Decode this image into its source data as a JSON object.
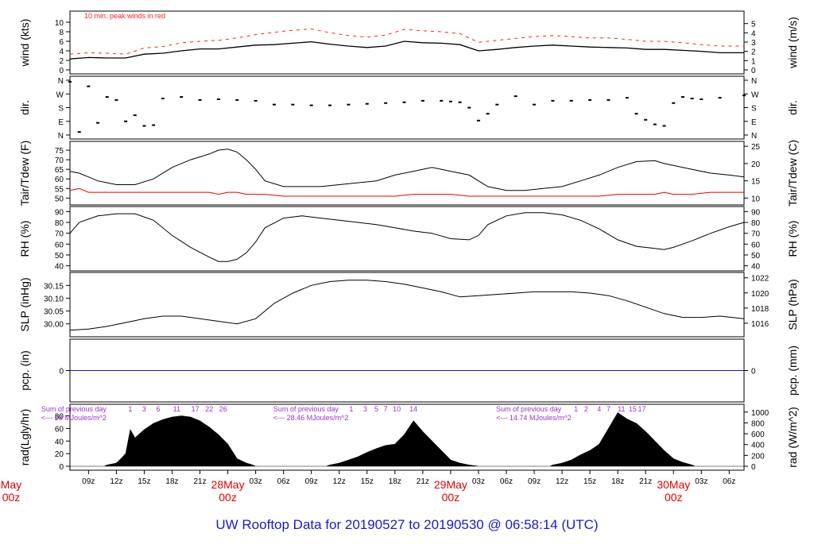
{
  "title": "UW Rooftop Data for 20190527  to  20190530 @ 06:58:14  (UTC)",
  "colors": {
    "title": "#1a1acc",
    "date": "#e00000",
    "trace": "#000000",
    "peak": "#ff2020",
    "dew": "#ee0000",
    "precip": "#1a1acc",
    "solar_note": "#9933cc"
  },
  "time_axis": {
    "hour_ticks": [
      "09z",
      "12z",
      "15z",
      "18z",
      "21z",
      "28May",
      "03z",
      "06z",
      "09z",
      "12z",
      "15z",
      "18z",
      "21z",
      "29May",
      "03z",
      "06z",
      "09z",
      "12z",
      "15z",
      "18z",
      "21z",
      "30May",
      "03z",
      "06z"
    ],
    "date_labels": [
      {
        "date": "May",
        "sub": "00z",
        "t": 0
      },
      {
        "date": "28May",
        "sub": "00z",
        "t": 24
      },
      {
        "date": "29May",
        "sub": "00z",
        "t": 48
      },
      {
        "date": "30May",
        "sub": "00z",
        "t": 72
      }
    ],
    "range_hours": [
      7,
      79.6
    ]
  },
  "chart_data": [
    {
      "type": "line",
      "panel": "wind",
      "ylabel": "wind (kts)",
      "ylabel_right": "wind (m/s)",
      "ylim": [
        0,
        11.5
      ],
      "yticks": [
        "0",
        "2",
        "4",
        "6",
        "8",
        "10"
      ],
      "yticks_right": [
        "0",
        "1",
        "2",
        "3",
        "4",
        "5"
      ],
      "annotation": "10 min. peak winds in red",
      "x": [
        7,
        9,
        11,
        13,
        15,
        17,
        19,
        21,
        23,
        25,
        27,
        29,
        31,
        33,
        35,
        37,
        39,
        41,
        43,
        45,
        47,
        49,
        51,
        53,
        55,
        57,
        59,
        61,
        63,
        65,
        67,
        69,
        71,
        73,
        75,
        77,
        79.6
      ],
      "series": [
        {
          "name": "wind",
          "values": [
            2.3,
            2.6,
            2.5,
            2.5,
            3.3,
            3.5,
            4.0,
            4.4,
            4.4,
            4.8,
            5.2,
            5.3,
            5.6,
            5.9,
            5.4,
            5.0,
            4.7,
            5.0,
            6.0,
            5.7,
            5.6,
            5.3,
            4.0,
            4.3,
            4.7,
            5.0,
            5.2,
            5.0,
            4.8,
            4.7,
            4.6,
            4.3,
            4.3,
            4.1,
            3.9,
            3.6,
            3.6
          ]
        },
        {
          "name": "peak",
          "values": [
            3.3,
            3.6,
            3.5,
            3.3,
            4.6,
            4.9,
            5.7,
            6.0,
            6.2,
            6.7,
            7.4,
            7.9,
            8.3,
            8.6,
            7.8,
            7.2,
            6.9,
            7.3,
            8.5,
            8.2,
            8.0,
            7.6,
            5.8,
            6.2,
            6.6,
            7.0,
            7.2,
            7.0,
            6.7,
            6.7,
            6.4,
            6.0,
            6.0,
            5.7,
            5.3,
            5.0,
            5.0
          ]
        }
      ]
    },
    {
      "type": "scatter",
      "panel": "dir",
      "ylabel": "dir.",
      "ylabel_right": "dir.",
      "ylim": [
        0,
        360
      ],
      "yticks": [
        "N",
        "E",
        "S",
        "W",
        "N"
      ],
      "x": [
        7,
        8,
        9,
        10,
        11,
        12,
        13,
        14,
        15,
        16,
        17,
        19,
        21,
        23,
        25,
        27,
        29,
        31,
        33,
        35,
        37,
        39,
        41,
        43,
        45,
        47,
        48,
        49,
        50,
        51,
        52,
        53,
        55,
        57,
        59,
        61,
        63,
        65,
        67,
        68,
        69,
        70,
        71,
        72,
        73,
        74,
        75,
        77,
        79.6
      ],
      "series": [
        {
          "name": "direction",
          "values": [
            350,
            20,
            320,
            80,
            250,
            230,
            90,
            130,
            60,
            65,
            240,
            250,
            230,
            235,
            230,
            225,
            200,
            200,
            195,
            195,
            200,
            205,
            210,
            215,
            225,
            225,
            220,
            215,
            180,
            95,
            140,
            200,
            255,
            200,
            225,
            225,
            230,
            230,
            245,
            140,
            100,
            70,
            60,
            210,
            250,
            240,
            235,
            245,
            260
          ]
        }
      ]
    },
    {
      "type": "line",
      "panel": "temperature",
      "ylabel": "Tair/Tdew (F)",
      "ylabel_right": "Tair/Tdew (C)",
      "ylim": [
        48.5,
        77.5
      ],
      "yticks": [
        "50",
        "55",
        "60",
        "65",
        "70",
        "75"
      ],
      "yticks_right": [
        "10",
        "15",
        "20",
        "25"
      ],
      "x": [
        7,
        8,
        9,
        10,
        12,
        14,
        16,
        18,
        20,
        22,
        23,
        24,
        25,
        26,
        27,
        28,
        30,
        32,
        34,
        36,
        38,
        40,
        42,
        44,
        46,
        48,
        50,
        51,
        52,
        54,
        56,
        58,
        60,
        62,
        64,
        66,
        68,
        70,
        71,
        72,
        74,
        76,
        78,
        79.6
      ],
      "series": [
        {
          "name": "Tair",
          "values": [
            64,
            63,
            61,
            59,
            57,
            57,
            60,
            66,
            70,
            73,
            75,
            75.5,
            74,
            70,
            65,
            59,
            56,
            56,
            56,
            57,
            58,
            59,
            62,
            64,
            66,
            64,
            62,
            59,
            56,
            54,
            54,
            55,
            56,
            59,
            62,
            66,
            69,
            69.5,
            68,
            67,
            65,
            63,
            62,
            61
          ]
        },
        {
          "name": "Tdew",
          "values": [
            54,
            55,
            53,
            53,
            53,
            53,
            53,
            53,
            53,
            53,
            52,
            53,
            53,
            52,
            52,
            52,
            51,
            51,
            51,
            51,
            51,
            51,
            51,
            52,
            52,
            52,
            51,
            51,
            51,
            51,
            51,
            51,
            51,
            51,
            51,
            52,
            52,
            52,
            53,
            52,
            52,
            53,
            53,
            53
          ]
        }
      ]
    },
    {
      "type": "line",
      "panel": "rh",
      "ylabel": "RH (%)",
      "ylabel_right": "RH (%)",
      "ylim": [
        39,
        91
      ],
      "yticks": [
        "40",
        "50",
        "60",
        "70",
        "80",
        "90"
      ],
      "yticks_right": [
        "40",
        "50",
        "60",
        "70",
        "80",
        "90"
      ],
      "x": [
        7,
        8,
        9,
        10,
        12,
        14,
        16,
        18,
        20,
        22,
        23,
        24,
        25,
        26,
        27,
        28,
        30,
        32,
        34,
        36,
        38,
        40,
        42,
        44,
        46,
        48,
        50,
        51,
        52,
        54,
        56,
        58,
        60,
        62,
        64,
        66,
        68,
        70,
        71,
        72,
        74,
        76,
        78,
        79.6
      ],
      "series": [
        {
          "name": "RH",
          "values": [
            70,
            80,
            83,
            86,
            88,
            88,
            82,
            68,
            57,
            48,
            44,
            44,
            46,
            52,
            62,
            75,
            84,
            86,
            84,
            82,
            80,
            78,
            75,
            72,
            70,
            65,
            64,
            68,
            78,
            86,
            89,
            89,
            87,
            82,
            74,
            64,
            58,
            56,
            55,
            57,
            63,
            70,
            76,
            80
          ]
        }
      ]
    },
    {
      "type": "line",
      "panel": "slp",
      "ylabel": "SLP (inHg)",
      "ylabel_right": "SLP (hPa)",
      "ylim": [
        29.965,
        30.185
      ],
      "yticks": [
        "30.00",
        "30.05",
        "30.10",
        "30.15"
      ],
      "yticks_right": [
        "1016",
        "1018",
        "1020",
        "1022"
      ],
      "x": [
        7,
        9,
        11,
        13,
        15,
        17,
        19,
        21,
        23,
        25,
        27,
        29,
        31,
        33,
        35,
        37,
        39,
        41,
        43,
        45,
        47,
        49,
        51,
        53,
        55,
        57,
        59,
        61,
        63,
        65,
        67,
        69,
        71,
        73,
        75,
        77,
        79.6
      ],
      "series": [
        {
          "name": "SLP",
          "values": [
            29.975,
            29.98,
            29.99,
            30.005,
            30.02,
            30.03,
            30.03,
            30.02,
            30.01,
            30.0,
            30.02,
            30.08,
            30.12,
            30.15,
            30.165,
            30.17,
            30.17,
            30.165,
            30.155,
            30.14,
            30.125,
            30.105,
            30.11,
            30.115,
            30.12,
            30.125,
            30.125,
            30.125,
            30.12,
            30.11,
            30.09,
            30.065,
            30.04,
            30.025,
            30.025,
            30.03,
            30.02
          ]
        }
      ]
    },
    {
      "type": "line",
      "panel": "precip",
      "ylabel": "pcp. (in)",
      "ylabel_right": "pcp. (mm)",
      "ylim": [
        -1,
        1
      ],
      "yticks": [
        "0"
      ],
      "yticks_right": [
        "0"
      ],
      "x": [
        7,
        79.6
      ],
      "series": [
        {
          "name": "precip",
          "values": [
            0,
            0
          ]
        }
      ]
    },
    {
      "type": "area",
      "panel": "radiation",
      "ylabel": "rad(Lgly/hr)",
      "ylabel_right": "rad (W/m^2)",
      "ylim": [
        0,
        92
      ],
      "yticks": [
        "0",
        "20",
        "40",
        "60",
        "80"
      ],
      "yticks_right": [
        "0",
        "200",
        "400",
        "600",
        "800",
        "1000"
      ],
      "annotations": [
        {
          "line1": "Sum of previous day",
          "line2": "<--- 28 MJoules/m^2",
          "t": 0.5
        },
        {
          "line1": "Sum of previous day",
          "line2": "<--- 28.46 MJoules/m^2",
          "t": 25.5
        },
        {
          "line1": "Sum of previous day",
          "line2": "<--- 14.74 MJoules/m^2",
          "t": 49.5
        }
      ],
      "hour_marks": [
        {
          "labels": [
            "1",
            "3",
            "6",
            "11",
            "17",
            "22",
            "26"
          ],
          "t": [
            13.5,
            15,
            16.5,
            18.5,
            20.5,
            22,
            23.5
          ]
        },
        {
          "labels": [
            "1",
            "3",
            "5",
            "7",
            "10",
            "14"
          ],
          "t": [
            37.3,
            38.8,
            40,
            41,
            42.2,
            44
          ]
        },
        {
          "labels": [
            "1",
            "2",
            "4",
            "7",
            "11",
            "15",
            "17"
          ],
          "t": [
            61.5,
            62.6,
            64,
            65,
            66.4,
            67.6,
            68.6
          ]
        }
      ],
      "x": [
        7,
        10.7,
        11,
        12,
        12.5,
        13,
        13.5,
        14,
        15,
        16,
        17,
        18,
        19,
        20,
        21,
        22,
        23,
        24,
        25,
        26,
        26.5,
        27,
        34.6,
        35,
        36,
        37,
        38,
        39,
        40,
        41,
        42,
        43,
        44,
        45,
        46,
        47,
        48,
        49,
        50,
        51,
        58.7,
        59,
        60,
        61,
        62,
        63,
        64,
        65,
        66,
        67,
        68,
        69,
        70,
        71,
        72,
        73,
        74,
        74.3,
        79.6
      ],
      "series": [
        {
          "name": "rad",
          "values": [
            0,
            0,
            2,
            5,
            12,
            20,
            58,
            45,
            58,
            68,
            74,
            78,
            80,
            78,
            72,
            62,
            50,
            35,
            12,
            5,
            3,
            0,
            0,
            2,
            5,
            10,
            15,
            22,
            28,
            33,
            35,
            50,
            72,
            55,
            40,
            25,
            10,
            5,
            2,
            0,
            0,
            2,
            5,
            10,
            18,
            25,
            35,
            60,
            85,
            75,
            68,
            55,
            40,
            25,
            12,
            6,
            2,
            0,
            0
          ]
        }
      ]
    }
  ]
}
